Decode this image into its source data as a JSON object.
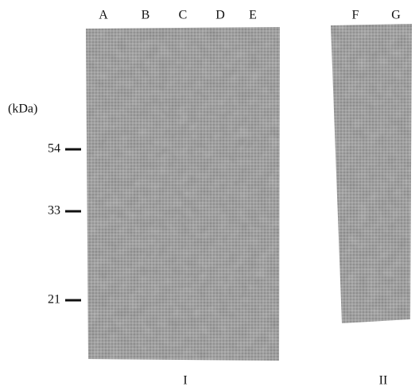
{
  "panels": [
    {
      "label": "I",
      "lanes": [
        "A",
        "B",
        "C",
        "D",
        "E"
      ]
    },
    {
      "label": "II",
      "lanes": [
        "F",
        "G"
      ]
    }
  ],
  "unit": "(kDa)",
  "markers": [
    "54",
    "33",
    "21"
  ]
}
